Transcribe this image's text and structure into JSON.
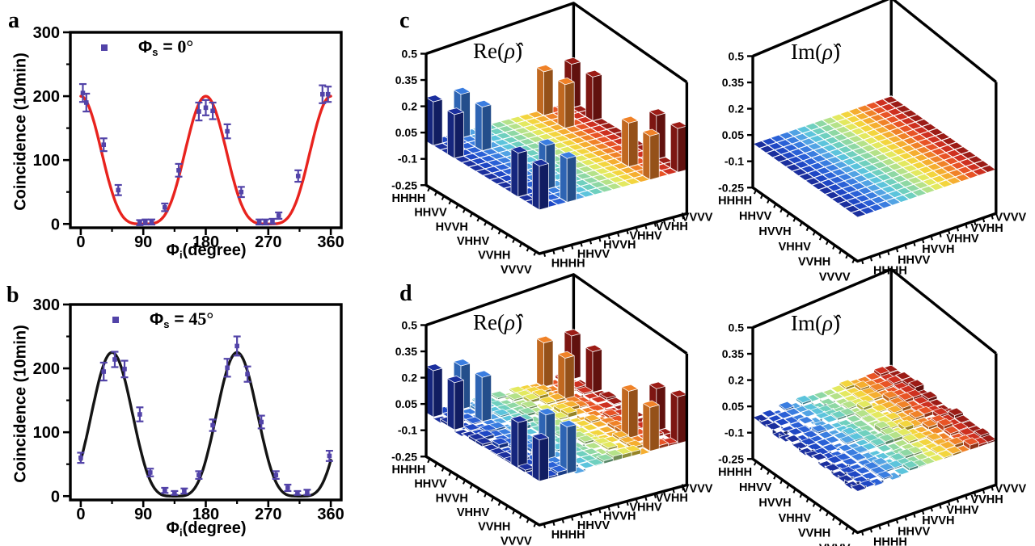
{
  "panels": [
    {
      "letter": "a"
    },
    {
      "letter": "b"
    },
    {
      "letter": "c"
    },
    {
      "letter": "d"
    }
  ],
  "tomo_common": {
    "n": 16,
    "basis_labels": [
      "HHHH",
      "HHVV",
      "HVVH",
      "VHHV",
      "VVHH",
      "VVVV"
    ],
    "labeled_indices": [
      0,
      3,
      6,
      9,
      12,
      15
    ],
    "z_tick_labels": [
      "0.5",
      "0.35",
      "0.2",
      "0.05",
      "-0.1",
      "-0.25"
    ],
    "z_tick_values": [
      0.5,
      0.35,
      0.2,
      0.05,
      -0.1,
      -0.25
    ],
    "zlim": [
      -0.25,
      0.5
    ],
    "peak_states": [
      "HHHH",
      "HHVV",
      "VVHH",
      "VVVV"
    ],
    "peak_indices": [
      0,
      3,
      12,
      15
    ],
    "colormap": [
      "#1b2f9e",
      "#1f47c4",
      "#2a60d6",
      "#3a7de0",
      "#52a3e4",
      "#5cc4dc",
      "#6fd0bf",
      "#8ed8a4",
      "#b5e289",
      "#e3e960",
      "#f3d53e",
      "#f5ae30",
      "#f08228",
      "#e85426",
      "#ce3020",
      "#9c1c16"
    ]
  },
  "chart_data": [
    {
      "type": "scatter",
      "panel": "a",
      "ylabel": "Coincidence (10min)",
      "xlabel": {
        "symbol": "Φ",
        "sub": "i",
        "rest": "(degree)"
      },
      "legend": {
        "symbol": "Φ",
        "sub": "s",
        "rest": " = ",
        "value": "0°"
      },
      "xlim": [
        -15,
        375
      ],
      "ylim": [
        -6,
        300
      ],
      "x_ticks": [
        0,
        90,
        180,
        270,
        360
      ],
      "y_ticks": [
        0,
        100,
        200,
        300
      ],
      "marker_color": "#5243a8",
      "fit": {
        "model": "A·cos⁴(φ−φ₀)",
        "A": 200,
        "phi0_deg": 0,
        "color": "#e8231e"
      },
      "points": [
        [
          3,
          205,
          14
        ],
        [
          8,
          190,
          14
        ],
        [
          33,
          124,
          10
        ],
        [
          54,
          53,
          8
        ],
        [
          85,
          2,
          4
        ],
        [
          93,
          3,
          4
        ],
        [
          102,
          3,
          4
        ],
        [
          121,
          26,
          6
        ],
        [
          141,
          84,
          10
        ],
        [
          170,
          176,
          14
        ],
        [
          180,
          182,
          12
        ],
        [
          190,
          177,
          13
        ],
        [
          211,
          145,
          11
        ],
        [
          231,
          50,
          8
        ],
        [
          257,
          3,
          4
        ],
        [
          266,
          3,
          4
        ],
        [
          276,
          4,
          4
        ],
        [
          285,
          13,
          5
        ],
        [
          313,
          75,
          9
        ],
        [
          348,
          203,
          14
        ],
        [
          356,
          203,
          12
        ]
      ]
    },
    {
      "type": "scatter",
      "panel": "b",
      "ylabel": "Coincidence (10min)",
      "xlabel": {
        "symbol": "Φ",
        "sub": "i",
        "rest": "(degree)"
      },
      "legend": {
        "symbol": "Φ",
        "sub": "s",
        "rest": " = ",
        "value": "45°"
      },
      "xlim": [
        -15,
        375
      ],
      "ylim": [
        -6,
        300
      ],
      "x_ticks": [
        0,
        90,
        180,
        270,
        360
      ],
      "y_ticks": [
        0,
        100,
        200,
        300
      ],
      "marker_color": "#5243a8",
      "fit": {
        "model": "A·cos⁴(φ−φ₀)",
        "A": 225,
        "phi0_deg": 45,
        "color": "#141414"
      },
      "points": [
        [
          0,
          60,
          8
        ],
        [
          33,
          195,
          14
        ],
        [
          49,
          214,
          12
        ],
        [
          63,
          199,
          13
        ],
        [
          85,
          128,
          11
        ],
        [
          100,
          37,
          6
        ],
        [
          121,
          9,
          4
        ],
        [
          135,
          5,
          3
        ],
        [
          149,
          8,
          4
        ],
        [
          170,
          33,
          6
        ],
        [
          190,
          111,
          9
        ],
        [
          211,
          201,
          14
        ],
        [
          225,
          235,
          15
        ],
        [
          240,
          191,
          12
        ],
        [
          260,
          116,
          10
        ],
        [
          281,
          33,
          6
        ],
        [
          298,
          13,
          5
        ],
        [
          312,
          5,
          3
        ],
        [
          326,
          6,
          4
        ],
        [
          358,
          63,
          8
        ]
      ]
    },
    {
      "type": "bar3d",
      "panel": "c",
      "component": "Re",
      "title": "Re(ρ̂)",
      "title_prefix": "Re(",
      "title_rho": "ρ̂",
      "title_suffix": ")",
      "has_peaks": true,
      "peak_value": 0.25,
      "peak_jitter": 0,
      "noise": 0,
      "tilt": 0,
      "seed": 1
    },
    {
      "type": "bar3d",
      "panel": "c",
      "component": "Im",
      "title": "Im(ρ̂)",
      "title_prefix": "Im(",
      "title_rho": "ρ̂",
      "title_suffix": ")",
      "has_peaks": false,
      "peak_value": 0,
      "peak_jitter": 0,
      "noise": 0,
      "tilt": 0,
      "seed": 2
    },
    {
      "type": "bar3d",
      "panel": "d",
      "component": "Re",
      "title": "Re(ρ̂)",
      "title_prefix": "Re(",
      "title_rho": "ρ̂",
      "title_suffix": ")",
      "has_peaks": true,
      "peak_value": 0.25,
      "peak_jitter": 0.02,
      "noise": 0.026,
      "tilt": 0,
      "seed": 42
    },
    {
      "type": "bar3d",
      "panel": "d",
      "component": "Im",
      "title": "Im(ρ̂)",
      "title_prefix": "Im(",
      "title_rho": "ρ̂",
      "title_suffix": ")",
      "has_peaks": false,
      "peak_value": 0,
      "peak_jitter": 0,
      "noise": 0.022,
      "tilt": 0.012,
      "seed": 77
    }
  ]
}
